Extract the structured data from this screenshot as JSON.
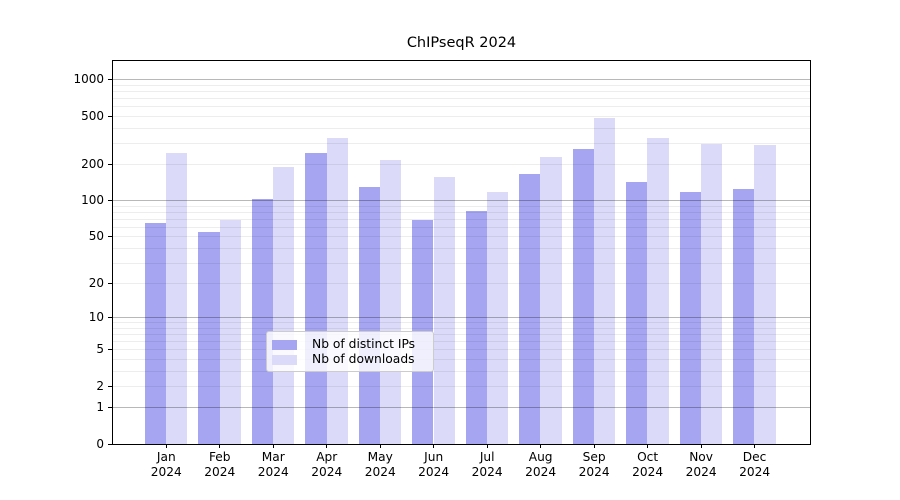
{
  "chart_data": {
    "type": "bar",
    "title": "ChIPseqR 2024",
    "categories": [
      "Jan",
      "Feb",
      "Mar",
      "Apr",
      "May",
      "Jun",
      "Jul",
      "Aug",
      "Sep",
      "Oct",
      "Nov",
      "Dec"
    ],
    "x_tick_year": "2024",
    "series": [
      {
        "name": "Nb of distinct IPs",
        "color": "#a5a5f2",
        "values": [
          65,
          55,
          103,
          245,
          128,
          69,
          81,
          165,
          265,
          143,
          118,
          125
        ]
      },
      {
        "name": "Nb of downloads",
        "color": "#dbdbf9",
        "values": [
          248,
          69,
          190,
          331,
          218,
          156,
          118,
          230,
          477,
          330,
          295,
          289
        ]
      }
    ],
    "y_scale": "log10(1+x)",
    "y_ticks": [
      0,
      1,
      2,
      5,
      10,
      20,
      50,
      100,
      200,
      500,
      1000
    ],
    "y_major_gridlines": [
      1,
      10,
      100,
      1000
    ],
    "ylim": [
      0,
      1420
    ],
    "grid": "horizontal",
    "legend_position": "lower-center-inside",
    "background_color": "#ffffff",
    "axis_color": "#000000"
  }
}
